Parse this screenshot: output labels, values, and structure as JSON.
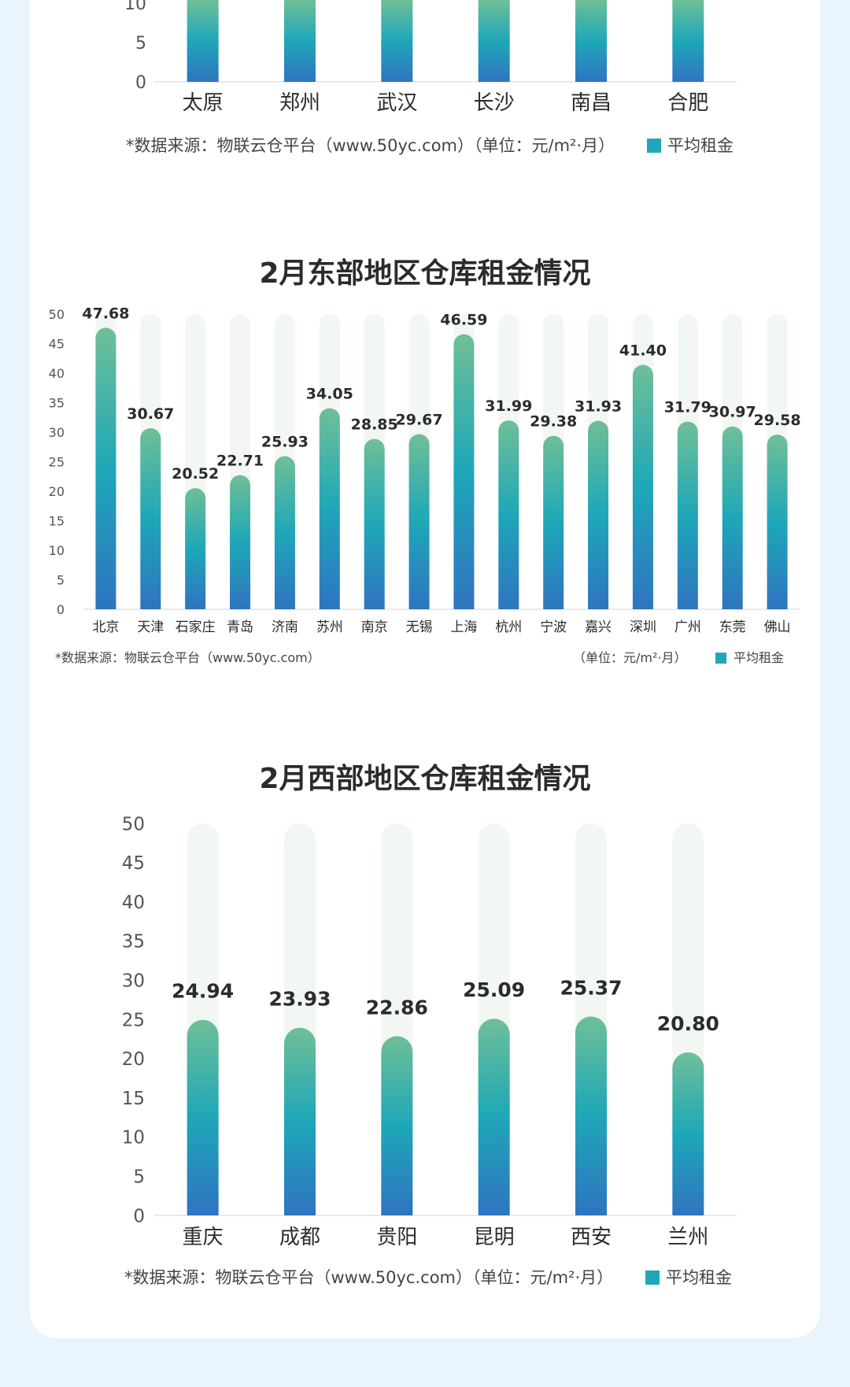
{
  "legend_label": "平均租金",
  "unit_label": "（单位：元/m²·月）",
  "source_label": "*数据来源：物联云仓平台（www.50yc.com）",
  "colors": {
    "bar_top": "#6fbf97",
    "bar_mid": "#1ea7b8",
    "bar_bottom": "#2f74c0",
    "track": "#f2f7f4",
    "page_bg": "#eaf4fd"
  },
  "chart_data": [
    {
      "id": "central",
      "type": "bar",
      "title": "",
      "categories": [
        "太原",
        "郑州",
        "武汉",
        "长沙",
        "南昌",
        "合肥"
      ],
      "values": [
        null,
        null,
        null,
        null,
        null,
        null
      ],
      "yticks": [
        0,
        5,
        10
      ],
      "ylim": [
        0,
        50
      ],
      "legend": "平均租金"
    },
    {
      "id": "east",
      "type": "bar",
      "title": "2月东部地区仓库租金情况",
      "categories": [
        "北京",
        "天津",
        "石家庄",
        "青岛",
        "济南",
        "苏州",
        "南京",
        "无锡",
        "上海",
        "杭州",
        "宁波",
        "嘉兴",
        "深圳",
        "广州",
        "东莞",
        "佛山"
      ],
      "values": [
        47.68,
        30.67,
        20.52,
        22.71,
        25.93,
        34.05,
        28.85,
        29.67,
        46.59,
        31.99,
        29.38,
        31.93,
        41.4,
        31.79,
        30.97,
        29.58
      ],
      "labels": [
        "47.68",
        "30.67",
        "20.52",
        "22.71",
        "25.93",
        "34.05",
        "28.85",
        "29.67",
        "46.59",
        "31.99",
        "29.38",
        "31.93",
        "41.40",
        "31.79",
        "30.97",
        "29.58"
      ],
      "yticks": [
        0,
        5,
        10,
        15,
        20,
        25,
        30,
        35,
        40,
        45,
        50
      ],
      "ylim": [
        0,
        50
      ],
      "legend": "平均租金",
      "source": "*数据来源：物联云仓平台（www.50yc.com）",
      "unit": "（单位：元/m²·月）"
    },
    {
      "id": "west",
      "type": "bar",
      "title": "2月西部地区仓库租金情况",
      "categories": [
        "重庆",
        "成都",
        "贵阳",
        "昆明",
        "西安",
        "兰州"
      ],
      "values": [
        24.94,
        23.93,
        22.86,
        25.09,
        25.37,
        20.8
      ],
      "labels": [
        "24.94",
        "23.93",
        "22.86",
        "25.09",
        "25.37",
        "20.80"
      ],
      "yticks": [
        0,
        5,
        10,
        15,
        20,
        25,
        30,
        35,
        40,
        45,
        50
      ],
      "ylim": [
        0,
        50
      ],
      "legend": "平均租金",
      "source": "*数据来源：物联云仓平台（www.50yc.com）（单位：元/m²·月）"
    }
  ]
}
